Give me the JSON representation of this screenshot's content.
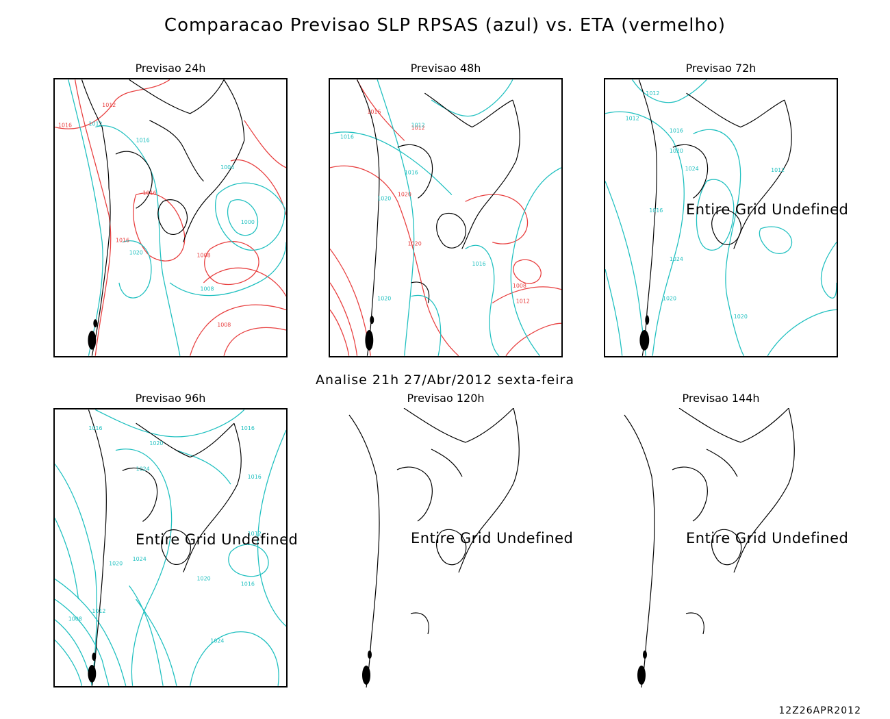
{
  "title": "Comparacao Previsao SLP RPSAS (azul) vs. ETA (vermelho)",
  "analysis": "Analise 21h 27/Abr/2012 sexta-feira",
  "timestamp": "12Z26APR2012",
  "undefined_message": "Entire Grid Undefined",
  "colors": {
    "rpsas": "#20c0c0",
    "eta": "#e84040",
    "coast": "#000000"
  },
  "panels": [
    {
      "title": "Previsao 24h",
      "labels": [
        "1012",
        "1016",
        "1020",
        "1008",
        "1004",
        "1000"
      ]
    },
    {
      "title": "Previsao 48h",
      "labels": [
        "1012",
        "1016",
        "1020",
        "1008"
      ]
    },
    {
      "title": "Previsao 72h",
      "labels": [
        "1012",
        "1016",
        "1020",
        "1024"
      ]
    },
    {
      "title": "Previsao 96h",
      "labels": [
        "1016",
        "1020",
        "1024",
        "1012",
        "1008"
      ]
    },
    {
      "title": "Previsao 120h",
      "labels": []
    },
    {
      "title": "Previsao 144h",
      "labels": []
    }
  ]
}
